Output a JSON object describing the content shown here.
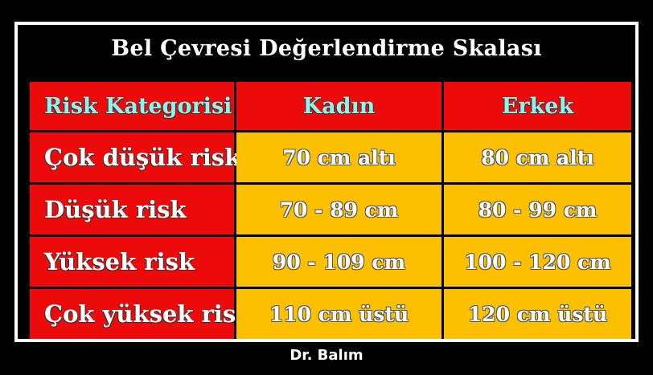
{
  "title": "Bel Çevresi Değerlendirme Skalası",
  "headers": [
    "Risk Kategorisi",
    "Kadın",
    "Erkek"
  ],
  "rows": [
    {
      "category": "Çok düşük risk",
      "kadin": "70 cm altı",
      "erkek": "80 cm altı"
    },
    {
      "category": "Düşük risk",
      "kadin": "70 - 89 cm",
      "erkek": "80 - 99 cm"
    },
    {
      "category": "Yüksek risk",
      "kadin": "90 - 109 cm",
      "erkek": "100 - 120 cm"
    },
    {
      "category": "Çok yüksek risk",
      "kadin": "110 cm üstü",
      "erkek": "120 cm üstü"
    }
  ],
  "credit": "Dr. Balım",
  "colors": {
    "background": "#000000",
    "header_red": "#ec0a0a",
    "value_orange": "#fcc000",
    "header_text": "#8ff3ee",
    "text": "#ffffff"
  }
}
